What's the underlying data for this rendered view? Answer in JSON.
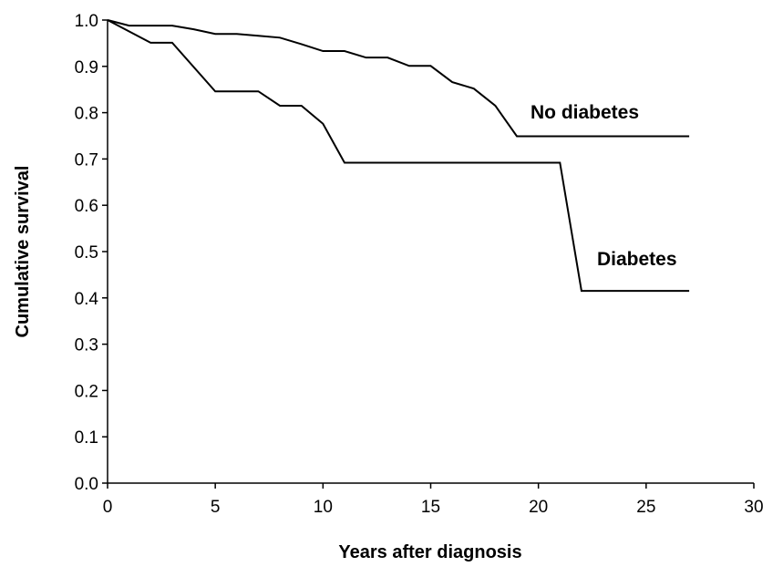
{
  "chart_data": {
    "type": "line",
    "xlabel": "Years after diagnosis",
    "ylabel": "Cumulative survival",
    "xlim": [
      0,
      30
    ],
    "ylim": [
      0,
      1
    ],
    "xticks": [
      0,
      5,
      10,
      15,
      20,
      25,
      30
    ],
    "yticks": [
      {
        "value": 0,
        "label": "0.0"
      },
      {
        "value": 0.1,
        "label": "0.1"
      },
      {
        "value": 0.2,
        "label": "0.2"
      },
      {
        "value": 0.3,
        "label": "0.3"
      },
      {
        "value": 0.4,
        "label": "0.4"
      },
      {
        "value": 0.5,
        "label": "0.5"
      },
      {
        "value": 0.6,
        "label": "0.6"
      },
      {
        "value": 0.7,
        "label": "0.7"
      },
      {
        "value": 0.8,
        "label": "0.8"
      },
      {
        "value": 0.9,
        "label": "0.9"
      },
      {
        "value": 1,
        "label": "1.0"
      }
    ],
    "grid": false,
    "series": [
      {
        "name": "No diabetes",
        "color": "#000000",
        "x": [
          0,
          1,
          3,
          4,
          5,
          6,
          7,
          8,
          9,
          10,
          11,
          12,
          13,
          14,
          15,
          16,
          17,
          18,
          19,
          27
        ],
        "values": [
          1.0,
          0.988,
          0.988,
          0.98,
          0.97,
          0.97,
          0.966,
          0.962,
          0.948,
          0.933,
          0.933,
          0.919,
          0.919,
          0.901,
          0.901,
          0.866,
          0.852,
          0.815,
          0.749,
          0.749
        ]
      },
      {
        "name": "Diabetes",
        "color": "#000000",
        "x": [
          0,
          2,
          3,
          5,
          7,
          8,
          9,
          10,
          11,
          21,
          22,
          27
        ],
        "values": [
          1.0,
          0.951,
          0.951,
          0.846,
          0.846,
          0.815,
          0.815,
          0.776,
          0.692,
          0.692,
          0.415,
          0.415
        ]
      }
    ]
  }
}
